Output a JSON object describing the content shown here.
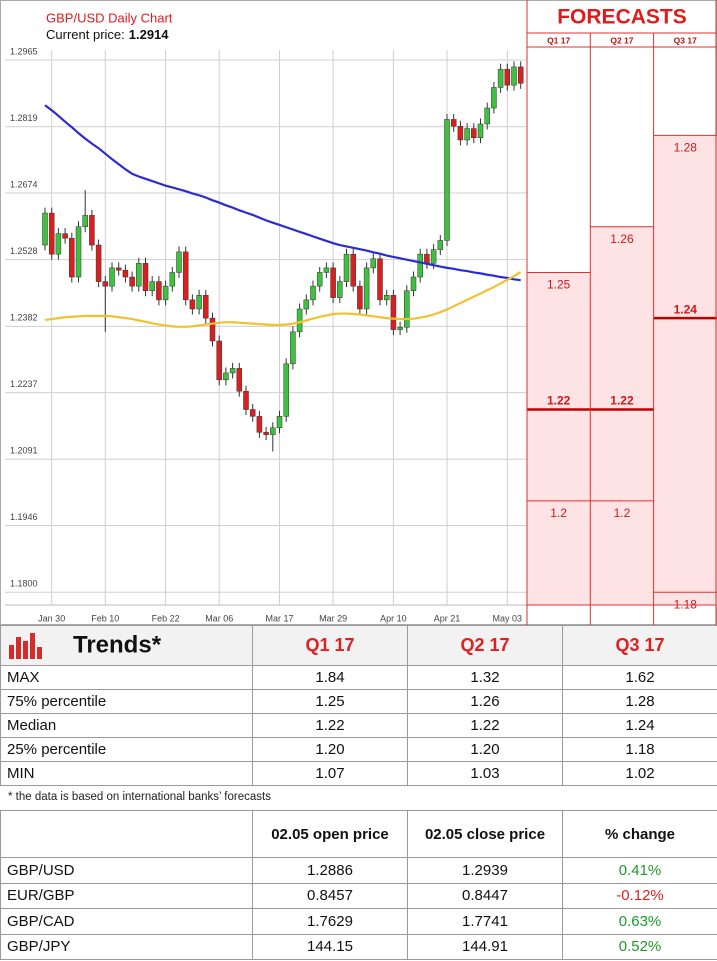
{
  "chart_data": {
    "type": "candlestick",
    "title": "GBP/USD Daily Chart",
    "current_price_label": "Current price:",
    "current_price": 1.2914,
    "categories": [
      null,
      "Jan 30",
      null,
      null,
      null,
      null,
      null,
      null,
      null,
      "Feb 10",
      null,
      null,
      null,
      null,
      null,
      null,
      null,
      null,
      "Feb 22",
      null,
      null,
      null,
      null,
      null,
      null,
      null,
      "Mar 06",
      null,
      null,
      null,
      null,
      null,
      null,
      null,
      null,
      "Mar 17",
      null,
      null,
      null,
      null,
      null,
      null,
      null,
      "Mar 29",
      null,
      null,
      null,
      null,
      null,
      null,
      null,
      null,
      "Apr 10",
      null,
      null,
      null,
      null,
      null,
      null,
      null,
      "Apr 21",
      null,
      null,
      null,
      null,
      null,
      null,
      null,
      null,
      "May 03",
      null,
      null
    ],
    "open": [
      1.256,
      1.263,
      1.254,
      1.2585,
      1.2575,
      1.249,
      1.26,
      1.2625,
      1.256,
      1.248,
      1.247,
      1.251,
      1.2505,
      1.249,
      1.247,
      1.252,
      1.246,
      1.248,
      1.244,
      1.247,
      1.25,
      1.2545,
      1.244,
      1.242,
      1.245,
      1.24,
      1.235,
      1.2265,
      1.228,
      1.229,
      1.224,
      1.22,
      1.2185,
      1.215,
      1.2145,
      1.216,
      1.2185,
      1.23,
      1.237,
      1.242,
      1.244,
      1.247,
      1.25,
      1.251,
      1.2445,
      1.248,
      1.254,
      1.247,
      1.242,
      1.251,
      1.253,
      1.244,
      1.245,
      1.2375,
      1.238,
      1.246,
      1.249,
      1.254,
      1.252,
      1.255,
      1.257,
      1.2835,
      1.282,
      1.279,
      1.2815,
      1.2795,
      1.2825,
      1.286,
      1.2905,
      1.2945,
      1.291,
      1.295
    ],
    "high": [
      1.2642,
      1.2642,
      1.2597,
      1.2597,
      1.2587,
      1.2612,
      1.268,
      1.2637,
      1.2572,
      1.2492,
      1.2522,
      1.2522,
      1.2517,
      1.2502,
      1.2532,
      1.2532,
      1.2492,
      1.2492,
      1.2482,
      1.2512,
      1.2557,
      1.2557,
      1.2452,
      1.2462,
      1.2462,
      1.2412,
      1.2362,
      1.2292,
      1.2302,
      1.2302,
      1.2252,
      1.2212,
      1.2197,
      1.2162,
      1.2172,
      1.2197,
      1.2312,
      1.2382,
      1.2432,
      1.2452,
      1.2482,
      1.2512,
      1.2522,
      1.2522,
      1.2492,
      1.2552,
      1.2552,
      1.2482,
      1.2522,
      1.2542,
      1.2542,
      1.2462,
      1.2462,
      1.2392,
      1.2472,
      1.2502,
      1.2552,
      1.2552,
      1.2562,
      1.2582,
      1.2847,
      1.2847,
      1.2832,
      1.2827,
      1.2827,
      1.2837,
      1.2872,
      1.2917,
      1.2957,
      1.2957,
      1.2962,
      1.2962
    ],
    "low": [
      1.2548,
      1.2528,
      1.2528,
      1.2563,
      1.2478,
      1.2478,
      1.2588,
      1.2548,
      1.2468,
      1.237,
      1.2458,
      1.2493,
      1.2478,
      1.2458,
      1.2458,
      1.2448,
      1.2448,
      1.2428,
      1.2428,
      1.2458,
      1.2488,
      1.2428,
      1.2408,
      1.2408,
      1.2388,
      1.2338,
      1.2253,
      1.2253,
      1.2268,
      1.2228,
      1.2188,
      1.2173,
      1.2138,
      1.2133,
      1.2108,
      1.2148,
      1.2173,
      1.2288,
      1.2358,
      1.2408,
      1.2428,
      1.2458,
      1.2488,
      1.2433,
      1.2433,
      1.2468,
      1.2458,
      1.2408,
      1.2408,
      1.2498,
      1.2428,
      1.2428,
      1.2363,
      1.2363,
      1.2368,
      1.2448,
      1.2478,
      1.2508,
      1.2508,
      1.2538,
      1.2558,
      1.2808,
      1.2778,
      1.2778,
      1.2783,
      1.2783,
      1.2813,
      1.2848,
      1.2893,
      1.2898,
      1.2898,
      1.2902
    ],
    "close": [
      1.263,
      1.254,
      1.2585,
      1.2575,
      1.249,
      1.26,
      1.2625,
      1.256,
      1.248,
      1.247,
      1.251,
      1.2505,
      1.249,
      1.247,
      1.252,
      1.246,
      1.248,
      1.244,
      1.247,
      1.25,
      1.2545,
      1.244,
      1.242,
      1.245,
      1.24,
      1.235,
      1.2265,
      1.228,
      1.229,
      1.224,
      1.22,
      1.2185,
      1.215,
      1.2145,
      1.216,
      1.2185,
      1.23,
      1.237,
      1.242,
      1.244,
      1.247,
      1.25,
      1.251,
      1.2445,
      1.248,
      1.254,
      1.247,
      1.242,
      1.251,
      1.253,
      1.244,
      1.245,
      1.2375,
      1.238,
      1.246,
      1.249,
      1.254,
      1.252,
      1.255,
      1.257,
      1.2835,
      1.282,
      1.279,
      1.2815,
      1.2795,
      1.2825,
      1.286,
      1.2905,
      1.2945,
      1.291,
      1.295,
      1.2914
    ],
    "up_color": "#3ec13e",
    "down_color": "#d91f1f",
    "moving_averages": [
      {
        "color": "#2b2bd6",
        "values": [
          1.2866,
          1.2855,
          1.2843,
          1.283,
          1.2818,
          1.2805,
          1.2793,
          1.2782,
          1.2772,
          1.276,
          1.2748,
          1.2737,
          1.2726,
          1.2716,
          1.271,
          1.2705,
          1.27,
          1.2695,
          1.269,
          1.2686,
          1.2682,
          1.2678,
          1.2673,
          1.2669,
          1.2664,
          1.2658,
          1.2653,
          1.2647,
          1.2642,
          1.2636,
          1.2631,
          1.2626,
          1.262,
          1.2614,
          1.2609,
          1.2604,
          1.2599,
          1.2594,
          1.2589,
          1.2584,
          1.2579,
          1.2574,
          1.2569,
          1.2564,
          1.256,
          1.2557,
          1.2554,
          1.2551,
          1.2548,
          1.2544,
          1.2541,
          1.2537,
          1.2534,
          1.2531,
          1.2528,
          1.2525,
          1.2522,
          1.2519,
          1.2516,
          1.2513,
          1.251,
          1.2508,
          1.2505,
          1.2503,
          1.25,
          1.2498,
          1.2495,
          1.2493,
          1.249,
          1.2488,
          1.2485,
          1.2483
        ]
      },
      {
        "color": "#f2c12e",
        "values": [
          1.2396,
          1.2398,
          1.24,
          1.2402,
          1.2403,
          1.2404,
          1.2405,
          1.2405,
          1.2405,
          1.2405,
          1.2404,
          1.2402,
          1.24,
          1.2398,
          1.2395,
          1.2392,
          1.2389,
          1.2386,
          1.2384,
          1.2382,
          1.2381,
          1.2381,
          1.2382,
          1.2384,
          1.2386,
          1.2388,
          1.239,
          1.2391,
          1.2391,
          1.239,
          1.2389,
          1.2388,
          1.2387,
          1.2386,
          1.2385,
          1.2385,
          1.2386,
          1.2388,
          1.2391,
          1.2395,
          1.2399,
          1.2403,
          1.2406,
          1.2409,
          1.241,
          1.241,
          1.2409,
          1.2408,
          1.2406,
          1.2404,
          1.2402,
          1.24,
          1.2399,
          1.2398,
          1.2398,
          1.2399,
          1.2401,
          1.2404,
          1.2408,
          1.2413,
          1.2419,
          1.2426,
          1.2433,
          1.244,
          1.2447,
          1.2454,
          1.2461,
          1.2468,
          1.2476,
          1.2484,
          1.2492,
          1.2501
        ]
      }
    ],
    "ylim": [
      1.1772,
      1.2987
    ],
    "yticks": [
      1.2965,
      1.2819,
      1.2674,
      1.2528,
      1.2382,
      1.2237,
      1.2091,
      1.1946,
      {
        "value": 1.18,
        "label": "1.1800"
      }
    ],
    "grid": true
  },
  "forecasts": {
    "title": "FORECASTS",
    "columns": [
      {
        "label": "Q1 17",
        "p75": 1.25,
        "median": 1.22,
        "p25": 1.2
      },
      {
        "label": "Q2 17",
        "p75": 1.26,
        "median": 1.22,
        "p25": 1.2
      },
      {
        "label": "Q3 17",
        "p75": 1.28,
        "median": 1.24,
        "p25": 1.18
      }
    ]
  },
  "trends": {
    "title": "Trends*",
    "columns": [
      "Q1 17",
      "Q2 17",
      "Q3 17"
    ],
    "rows": [
      [
        "MAX",
        "1.84",
        "1.32",
        "1.62"
      ],
      [
        "75% percentile",
        "1.25",
        "1.26",
        "1.28"
      ],
      [
        "Median",
        "1.22",
        "1.22",
        "1.24"
      ],
      [
        "25% percentile",
        "1.20",
        "1.20",
        "1.18"
      ],
      [
        "MIN",
        "1.07",
        "1.03",
        "1.02"
      ]
    ]
  },
  "note": "* the data is based on international banks’ forecasts",
  "prices": {
    "columns": [
      "02.05 open price",
      "02.05 close price",
      "% change"
    ],
    "rows": [
      [
        "GBP/USD",
        "1.2886",
        "1.2939",
        "0.41%"
      ],
      [
        "EUR/GBP",
        "0.8457",
        "0.8447",
        "-0.12%"
      ],
      [
        "GBP/CAD",
        "1.7629",
        "1.7741",
        "0.63%"
      ],
      [
        "GBP/JPY",
        "144.15",
        "144.91",
        "0.52%"
      ]
    ]
  }
}
